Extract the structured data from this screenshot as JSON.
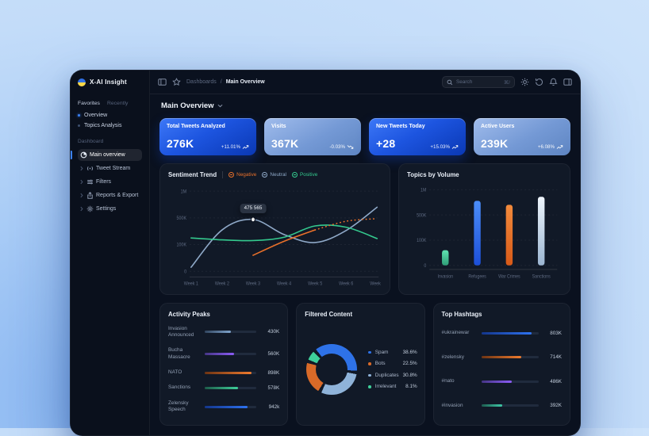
{
  "brand": {
    "name": "X-AI Insight"
  },
  "topbar": {
    "breadcrumb": {
      "parent": "Dashboards",
      "separator": "/",
      "current": "Main Overview"
    },
    "search": {
      "placeholder": "Search",
      "shortcut": "⌘/"
    }
  },
  "sidebar": {
    "tabs": [
      {
        "label": "Favorites",
        "active": true
      },
      {
        "label": "Recently",
        "active": false
      }
    ],
    "favorites": [
      {
        "label": "Overview",
        "active": true
      },
      {
        "label": "Topics Analysis",
        "active": false
      }
    ],
    "section": "Dashboard",
    "items": [
      {
        "label": "Main overview",
        "icon": "pie-chart-icon",
        "active": true
      },
      {
        "label": "Tweet Stream",
        "icon": "broadcast-icon",
        "active": false
      },
      {
        "label": "Filters",
        "icon": "sliders-icon",
        "active": false
      },
      {
        "label": "Reports & Export",
        "icon": "export-icon",
        "active": false
      },
      {
        "label": "Settings",
        "icon": "gear-icon",
        "active": false
      }
    ]
  },
  "page": {
    "title": "Main Overview"
  },
  "kpis": [
    {
      "label": "Total Tweets Analyzed",
      "value": "276K",
      "delta": "+11.01%",
      "trend": "up",
      "style": "bright"
    },
    {
      "label": "Visits",
      "value": "367K",
      "delta": "-0.03%",
      "trend": "down",
      "style": "light"
    },
    {
      "label": "New Tweets Today",
      "value": "+28",
      "delta": "+15.03%",
      "trend": "up",
      "style": "bright"
    },
    {
      "label": "Active Users",
      "value": "239K",
      "delta": "+6.08%",
      "trend": "up",
      "style": "light"
    }
  ],
  "chart_data": [
    {
      "id": "sentiment_trend",
      "type": "line",
      "title": "Sentiment Trend",
      "x": [
        "Week 1",
        "Week 2",
        "Week 3",
        "Week 4",
        "Week 5",
        "Week 6",
        "Week 7"
      ],
      "y_ticks": [
        "1M",
        "500K",
        "100K",
        "0"
      ],
      "y_tick_values": [
        1000000,
        500000,
        100000,
        0
      ],
      "legend_position": "top",
      "grid": true,
      "series": [
        {
          "name": "Negative",
          "color": "#e8702a",
          "values": [
            null,
            null,
            60000,
            150000,
            320000,
            450000,
            490000
          ],
          "dashed_from_index": 4
        },
        {
          "name": "Neutral",
          "color": "#8fa9c8",
          "values": [
            15000,
            320000,
            476000,
            250000,
            130000,
            310000,
            700000
          ]
        },
        {
          "name": "Positive",
          "color": "#34c98e",
          "values": [
            200000,
            170000,
            160000,
            210000,
            380000,
            360000,
            190000
          ]
        }
      ],
      "tooltip": {
        "text": "475 565",
        "series": "Neutral",
        "x_index": 2
      }
    },
    {
      "id": "topics_by_volume",
      "type": "bar",
      "title": "Topics by Volume",
      "categories": [
        "Invasion",
        "Refugees",
        "War Crimes",
        "Sanctions"
      ],
      "values": [
        60000,
        780000,
        700000,
        860000
      ],
      "bar_colors": [
        "green",
        "blue",
        "orange",
        "light"
      ],
      "y_ticks": [
        "1M",
        "500K",
        "100K",
        "0"
      ],
      "y_tick_values": [
        1000000,
        500000,
        100000,
        0
      ],
      "grid": true
    },
    {
      "id": "filtered_content",
      "type": "pie",
      "title": "Filtered Content",
      "slices": [
        {
          "label": "Spam",
          "pct": 38.6,
          "pct_label": "38.6%",
          "color": "#2e72e8"
        },
        {
          "label": "Bots",
          "pct": 22.5,
          "pct_label": "22.5%",
          "color": "#d96a28"
        },
        {
          "label": "Duplicates",
          "pct": 30.8,
          "pct_label": "30.8%",
          "color": "#8fb3d9"
        },
        {
          "label": "Irrelevant",
          "pct": 8.1,
          "pct_label": "8.1%",
          "color": "#3ecf9a"
        }
      ],
      "ring_order": [
        0,
        2,
        1,
        3
      ],
      "ring_start_deg": 318
    },
    {
      "id": "activity_peaks",
      "type": "bar",
      "title": "Activity Peaks",
      "items": [
        {
          "label": "Invasion Announced",
          "value": "430K",
          "pct": 50,
          "color": "steel"
        },
        {
          "label": "Bucha Massacre",
          "value": "560K",
          "pct": 57,
          "color": "purple"
        },
        {
          "label": "NATO",
          "value": "898K",
          "pct": 90,
          "color": "orange"
        },
        {
          "label": "Sanctions",
          "value": "578K",
          "pct": 65,
          "color": "green"
        },
        {
          "label": "Zelensky Speech",
          "value": "942k",
          "pct": 83,
          "color": "blue"
        }
      ]
    },
    {
      "id": "top_hashtags",
      "type": "bar",
      "title": "Top Hashtags",
      "items": [
        {
          "label": "#ukrainewar",
          "value": "803K",
          "pct": 88,
          "color": "blue"
        },
        {
          "label": "#zelensky",
          "value": "714K",
          "pct": 70,
          "color": "orange"
        },
        {
          "label": "#nato",
          "value": "486K",
          "pct": 53,
          "color": "purple"
        },
        {
          "label": "#invasion",
          "value": "392K",
          "pct": 36,
          "color": "teal"
        }
      ]
    }
  ]
}
